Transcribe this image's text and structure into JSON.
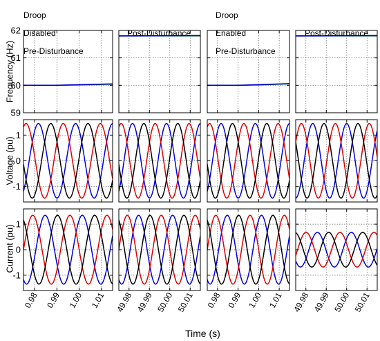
{
  "chart_data": {
    "type": "line",
    "layout": "3x4 grid of small multiples",
    "column_titles": [
      [
        "Droop",
        "Disabled",
        "Pre-Disturbance"
      ],
      [
        "Post-Disturbance"
      ],
      [
        "Droop",
        "Enabled",
        "Pre-Disturbance"
      ],
      [
        "Post-Disturbance"
      ]
    ],
    "row_ylabels": [
      "Frequency (Hz)",
      "Voltage (pu)",
      "Current (pu)"
    ],
    "xlabel": "Time (s)",
    "xaxis": {
      "pre": {
        "range": [
          0.975,
          1.015
        ],
        "ticks": [
          0.98,
          0.99,
          1.0,
          1.01
        ],
        "tick_labels": [
          "0.98",
          "0.99",
          "1.00",
          "1.01"
        ]
      },
      "post": {
        "range": [
          49.975,
          50.015
        ],
        "ticks": [
          49.98,
          49.99,
          50.0,
          50.01
        ],
        "tick_labels": [
          "49.98",
          "49.99",
          "50.00",
          "50.01"
        ]
      }
    },
    "yaxis": {
      "frequency": {
        "range": [
          59,
          62
        ],
        "ticks": [
          59,
          60,
          61,
          62
        ],
        "tick_labels": [
          "59",
          "60",
          "61",
          "62"
        ]
      },
      "voltage": {
        "range": [
          -1.6,
          1.6
        ],
        "ticks": [
          -1,
          0,
          1
        ],
        "tick_labels": [
          "-1",
          "0",
          "1"
        ]
      },
      "current": {
        "range": [
          -1.6,
          1.6
        ],
        "ticks": [
          -1,
          0,
          1
        ],
        "tick_labels": [
          "-1",
          "0",
          "1"
        ]
      }
    },
    "grid": "dotted",
    "frequency_series": {
      "colors": [
        "#008000",
        "#0000cc"
      ],
      "panels": [
        {
          "points": [
            [
              0.975,
              60.0
            ],
            [
              0.99,
              60.0
            ],
            [
              1.0,
              60.01
            ],
            [
              1.015,
              60.04
            ]
          ]
        },
        {
          "points": [
            [
              49.975,
              61.8
            ],
            [
              50.015,
              61.8
            ]
          ]
        },
        {
          "points": [
            [
              0.975,
              60.0
            ],
            [
              0.99,
              60.0
            ],
            [
              1.0,
              60.01
            ],
            [
              1.015,
              60.05
            ]
          ]
        },
        {
          "points": [
            [
              49.975,
              61.8
            ],
            [
              50.015,
              61.8
            ]
          ]
        }
      ]
    },
    "three_phase_series": {
      "phase_colors": [
        "#000000",
        "#dd0000",
        "#0000dd"
      ],
      "phase_offsets_deg": [
        0,
        -120,
        120
      ],
      "frequency_hz": 60,
      "voltage_panels": [
        {
          "amplitude": 1.45,
          "phase0_deg": 95
        },
        {
          "amplitude": 1.45,
          "phase0_deg": 95
        },
        {
          "amplitude": 1.45,
          "phase0_deg": 95
        },
        {
          "amplitude": 1.45,
          "phase0_deg": 60
        }
      ],
      "current_panels": [
        {
          "amplitude": 1.35,
          "phase0_deg": 30
        },
        {
          "amplitude": 1.35,
          "phase0_deg": 30
        },
        {
          "amplitude": 1.35,
          "phase0_deg": 30
        },
        {
          "amplitude": 0.68,
          "phase0_deg": 10
        }
      ]
    }
  }
}
